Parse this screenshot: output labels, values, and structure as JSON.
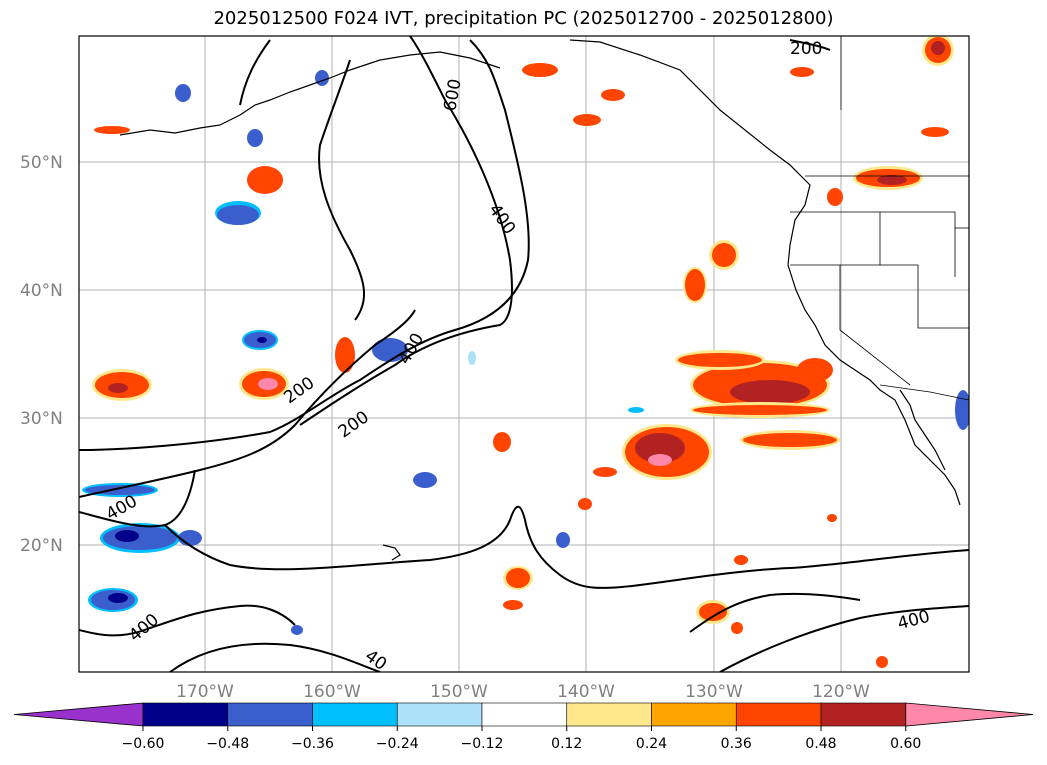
{
  "title": "2025012500 F024 IVT, precipitation PC (2025012700 - 2025012800)",
  "lat_labels": [
    "50°N",
    "40°N",
    "30°N",
    "20°N"
  ],
  "lon_labels": [
    "170°W",
    "160°W",
    "150°W",
    "140°W",
    "130°W",
    "120°W"
  ],
  "contour_labels": [
    "200",
    "600",
    "400",
    "400",
    "200",
    "200",
    "400",
    "400",
    "40",
    "400"
  ],
  "colorbar": {
    "colors": [
      "#9932CC",
      "#00008B",
      "#3A5FCD",
      "#00BFFF",
      "#ADE1FA",
      "#FFFFFF",
      "#FFE88C",
      "#FFA500",
      "#FF4500",
      "#B22222",
      "#FF88AA"
    ],
    "ticks": [
      "−0.60",
      "−0.48",
      "−0.36",
      "−0.24",
      "−0.12",
      "0.12",
      "0.24",
      "0.36",
      "0.48",
      "0.60"
    ]
  }
}
